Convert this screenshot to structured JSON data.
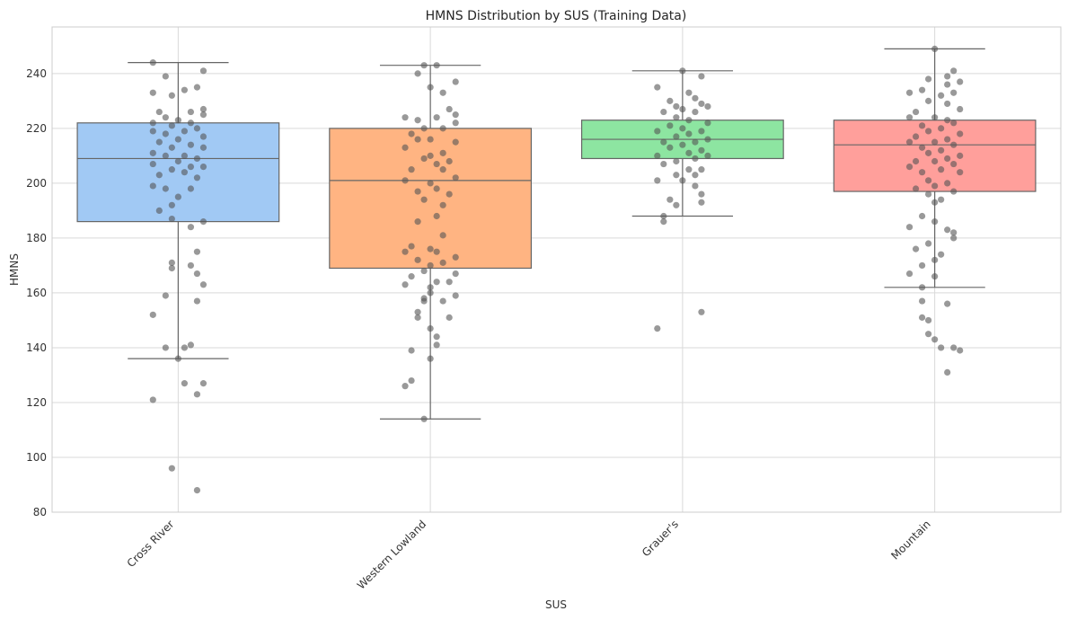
{
  "chart_data": {
    "type": "box",
    "title": "HMNS Distribution by SUS (Training Data)",
    "xlabel": "SUS",
    "ylabel": "HMNS",
    "ylim": [
      80,
      257
    ],
    "yticks": [
      80,
      100,
      120,
      140,
      160,
      180,
      200,
      220,
      240
    ],
    "grid": true,
    "categories": [
      "Cross River",
      "Western Lowland",
      "Grauer's",
      "Mountain"
    ],
    "colors": [
      "#a1c9f4",
      "#ffb482",
      "#8de5a1",
      "#ff9f9b"
    ],
    "point_color": "#555555",
    "boxes": [
      {
        "name": "Cross River",
        "whisker_low": 136,
        "q1": 186,
        "median": 209,
        "q3": 222,
        "whisker_high": 244
      },
      {
        "name": "Western Lowland",
        "whisker_low": 114,
        "q1": 169,
        "median": 201,
        "q3": 220,
        "whisker_high": 243
      },
      {
        "name": "Grauer's",
        "whisker_low": 188,
        "q1": 209,
        "median": 216,
        "q3": 223,
        "whisker_high": 241
      },
      {
        "name": "Mountain",
        "whisker_low": 162,
        "q1": 197,
        "median": 214,
        "q3": 223,
        "whisker_high": 249
      }
    ],
    "points": [
      [
        [
          -0.2,
          244
        ],
        [
          0.2,
          241
        ],
        [
          -0.1,
          239
        ],
        [
          0.15,
          235
        ],
        [
          -0.2,
          233
        ],
        [
          0.05,
          234
        ],
        [
          -0.05,
          232
        ],
        [
          0.2,
          227
        ],
        [
          -0.15,
          226
        ],
        [
          0.1,
          226
        ],
        [
          -0.1,
          224
        ],
        [
          0.2,
          225
        ],
        [
          0.0,
          223
        ],
        [
          -0.2,
          222
        ],
        [
          0.1,
          222
        ],
        [
          -0.05,
          221
        ],
        [
          0.15,
          220
        ],
        [
          -0.2,
          219
        ],
        [
          0.05,
          219
        ],
        [
          -0.1,
          218
        ],
        [
          0.2,
          217
        ],
        [
          0.0,
          216
        ],
        [
          -0.15,
          215
        ],
        [
          0.1,
          214
        ],
        [
          -0.05,
          213
        ],
        [
          0.2,
          213
        ],
        [
          -0.2,
          211
        ],
        [
          0.05,
          210
        ],
        [
          -0.1,
          210
        ],
        [
          0.15,
          209
        ],
        [
          0.0,
          208
        ],
        [
          -0.2,
          207
        ],
        [
          0.1,
          206
        ],
        [
          -0.05,
          205
        ],
        [
          0.2,
          206
        ],
        [
          -0.15,
          203
        ],
        [
          0.05,
          204
        ],
        [
          0.15,
          202
        ],
        [
          -0.2,
          199
        ],
        [
          0.1,
          198
        ],
        [
          -0.1,
          198
        ],
        [
          0.0,
          195
        ],
        [
          -0.05,
          192
        ],
        [
          -0.15,
          190
        ],
        [
          0.2,
          186
        ],
        [
          0.1,
          184
        ],
        [
          -0.05,
          187
        ],
        [
          0.15,
          175
        ],
        [
          -0.05,
          171
        ],
        [
          0.1,
          170
        ],
        [
          -0.05,
          169
        ],
        [
          0.15,
          167
        ],
        [
          0.2,
          163
        ],
        [
          -0.1,
          159
        ],
        [
          0.15,
          157
        ],
        [
          -0.2,
          152
        ],
        [
          0.1,
          141
        ],
        [
          -0.1,
          140
        ],
        [
          0.05,
          140
        ],
        [
          0.0,
          136
        ],
        [
          0.05,
          127
        ],
        [
          0.2,
          127
        ],
        [
          0.15,
          123
        ],
        [
          -0.2,
          121
        ],
        [
          -0.05,
          96
        ],
        [
          0.15,
          88
        ]
      ],
      [
        [
          -0.05,
          243
        ],
        [
          0.05,
          243
        ],
        [
          0.2,
          237
        ],
        [
          -0.1,
          240
        ],
        [
          0.0,
          235
        ],
        [
          0.1,
          233
        ],
        [
          0.15,
          227
        ],
        [
          0.2,
          225
        ],
        [
          -0.2,
          224
        ],
        [
          0.05,
          224
        ],
        [
          -0.1,
          223
        ],
        [
          0.2,
          222
        ],
        [
          -0.05,
          220
        ],
        [
          0.1,
          220
        ],
        [
          -0.15,
          218
        ],
        [
          0.0,
          216
        ],
        [
          -0.1,
          216
        ],
        [
          0.2,
          215
        ],
        [
          -0.2,
          213
        ],
        [
          0.1,
          211
        ],
        [
          0.0,
          210
        ],
        [
          -0.05,
          209
        ],
        [
          0.15,
          208
        ],
        [
          0.05,
          207
        ],
        [
          -0.15,
          205
        ],
        [
          0.1,
          205
        ],
        [
          -0.2,
          201
        ],
        [
          0.2,
          202
        ],
        [
          0.0,
          200
        ],
        [
          0.05,
          198
        ],
        [
          -0.1,
          197
        ],
        [
          0.15,
          196
        ],
        [
          -0.05,
          194
        ],
        [
          0.1,
          192
        ],
        [
          0.05,
          188
        ],
        [
          -0.1,
          186
        ],
        [
          0.1,
          181
        ],
        [
          -0.15,
          177
        ],
        [
          0.0,
          176
        ],
        [
          -0.2,
          175
        ],
        [
          0.05,
          175
        ],
        [
          0.2,
          173
        ],
        [
          -0.1,
          172
        ],
        [
          0.1,
          171
        ],
        [
          0.0,
          170
        ],
        [
          -0.05,
          168
        ],
        [
          0.2,
          167
        ],
        [
          -0.15,
          166
        ],
        [
          0.15,
          164
        ],
        [
          0.05,
          164
        ],
        [
          -0.2,
          163
        ],
        [
          0.0,
          162
        ],
        [
          0.0,
          160
        ],
        [
          -0.05,
          158
        ],
        [
          -0.05,
          157
        ],
        [
          0.2,
          159
        ],
        [
          0.1,
          157
        ],
        [
          -0.1,
          153
        ],
        [
          0.15,
          151
        ],
        [
          -0.1,
          151
        ],
        [
          0.0,
          147
        ],
        [
          0.05,
          144
        ],
        [
          0.05,
          141
        ],
        [
          -0.15,
          139
        ],
        [
          0.0,
          136
        ],
        [
          -0.15,
          128
        ],
        [
          -0.2,
          126
        ],
        [
          -0.05,
          114
        ]
      ],
      [
        [
          0.0,
          241
        ],
        [
          0.15,
          239
        ],
        [
          -0.2,
          235
        ],
        [
          0.05,
          233
        ],
        [
          0.1,
          231
        ],
        [
          -0.1,
          230
        ],
        [
          0.15,
          229
        ],
        [
          -0.05,
          228
        ],
        [
          0.2,
          228
        ],
        [
          0.0,
          227
        ],
        [
          -0.15,
          226
        ],
        [
          0.1,
          226
        ],
        [
          -0.05,
          224
        ],
        [
          0.05,
          223
        ],
        [
          0.2,
          222
        ],
        [
          -0.1,
          221
        ],
        [
          0.0,
          220
        ],
        [
          0.15,
          219
        ],
        [
          -0.2,
          219
        ],
        [
          0.05,
          218
        ],
        [
          -0.05,
          217
        ],
        [
          0.2,
          216
        ],
        [
          0.1,
          215
        ],
        [
          -0.15,
          215
        ],
        [
          0.0,
          214
        ],
        [
          0.15,
          212
        ],
        [
          -0.1,
          213
        ],
        [
          0.05,
          211
        ],
        [
          -0.2,
          210
        ],
        [
          0.2,
          210
        ],
        [
          0.1,
          209
        ],
        [
          -0.05,
          208
        ],
        [
          -0.15,
          207
        ],
        [
          0.15,
          205
        ],
        [
          0.05,
          205
        ],
        [
          -0.05,
          203
        ],
        [
          0.1,
          203
        ],
        [
          0.0,
          201
        ],
        [
          -0.2,
          201
        ],
        [
          0.1,
          199
        ],
        [
          0.15,
          196
        ],
        [
          0.15,
          193
        ],
        [
          -0.05,
          192
        ],
        [
          -0.1,
          194
        ],
        [
          -0.15,
          188
        ],
        [
          -0.15,
          186
        ],
        [
          0.15,
          153
        ],
        [
          -0.2,
          147
        ]
      ],
      [
        [
          0.0,
          249
        ],
        [
          0.15,
          241
        ],
        [
          0.1,
          239
        ],
        [
          0.2,
          237
        ],
        [
          -0.05,
          238
        ],
        [
          0.1,
          236
        ],
        [
          -0.1,
          234
        ],
        [
          -0.2,
          233
        ],
        [
          0.15,
          233
        ],
        [
          0.05,
          232
        ],
        [
          -0.05,
          230
        ],
        [
          0.1,
          229
        ],
        [
          0.2,
          227
        ],
        [
          -0.15,
          226
        ],
        [
          0.0,
          224
        ],
        [
          -0.2,
          224
        ],
        [
          0.1,
          223
        ],
        [
          0.15,
          222
        ],
        [
          -0.1,
          221
        ],
        [
          0.05,
          220
        ],
        [
          -0.05,
          219
        ],
        [
          0.2,
          218
        ],
        [
          -0.15,
          217
        ],
        [
          0.1,
          216
        ],
        [
          0.0,
          215
        ],
        [
          -0.2,
          215
        ],
        [
          0.15,
          214
        ],
        [
          -0.1,
          213
        ],
        [
          0.05,
          212
        ],
        [
          -0.05,
          211
        ],
        [
          0.2,
          210
        ],
        [
          0.1,
          209
        ],
        [
          -0.15,
          208
        ],
        [
          0.0,
          208
        ],
        [
          0.15,
          207
        ],
        [
          -0.2,
          206
        ],
        [
          0.05,
          205
        ],
        [
          -0.1,
          204
        ],
        [
          0.2,
          204
        ],
        [
          -0.05,
          201
        ],
        [
          0.1,
          200
        ],
        [
          0.0,
          199
        ],
        [
          -0.15,
          198
        ],
        [
          0.15,
          197
        ],
        [
          -0.05,
          196
        ],
        [
          0.05,
          194
        ],
        [
          0.0,
          193
        ],
        [
          -0.1,
          188
        ],
        [
          0.0,
          186
        ],
        [
          -0.2,
          184
        ],
        [
          0.1,
          183
        ],
        [
          0.15,
          182
        ],
        [
          0.15,
          180
        ],
        [
          -0.05,
          178
        ],
        [
          -0.15,
          176
        ],
        [
          0.05,
          174
        ],
        [
          0.0,
          172
        ],
        [
          -0.1,
          170
        ],
        [
          -0.2,
          167
        ],
        [
          0.0,
          166
        ],
        [
          -0.1,
          162
        ],
        [
          -0.1,
          157
        ],
        [
          0.1,
          156
        ],
        [
          -0.1,
          151
        ],
        [
          -0.05,
          150
        ],
        [
          -0.05,
          145
        ],
        [
          0.0,
          143
        ],
        [
          0.05,
          140
        ],
        [
          0.15,
          140
        ],
        [
          0.2,
          139
        ],
        [
          0.1,
          131
        ]
      ]
    ]
  }
}
